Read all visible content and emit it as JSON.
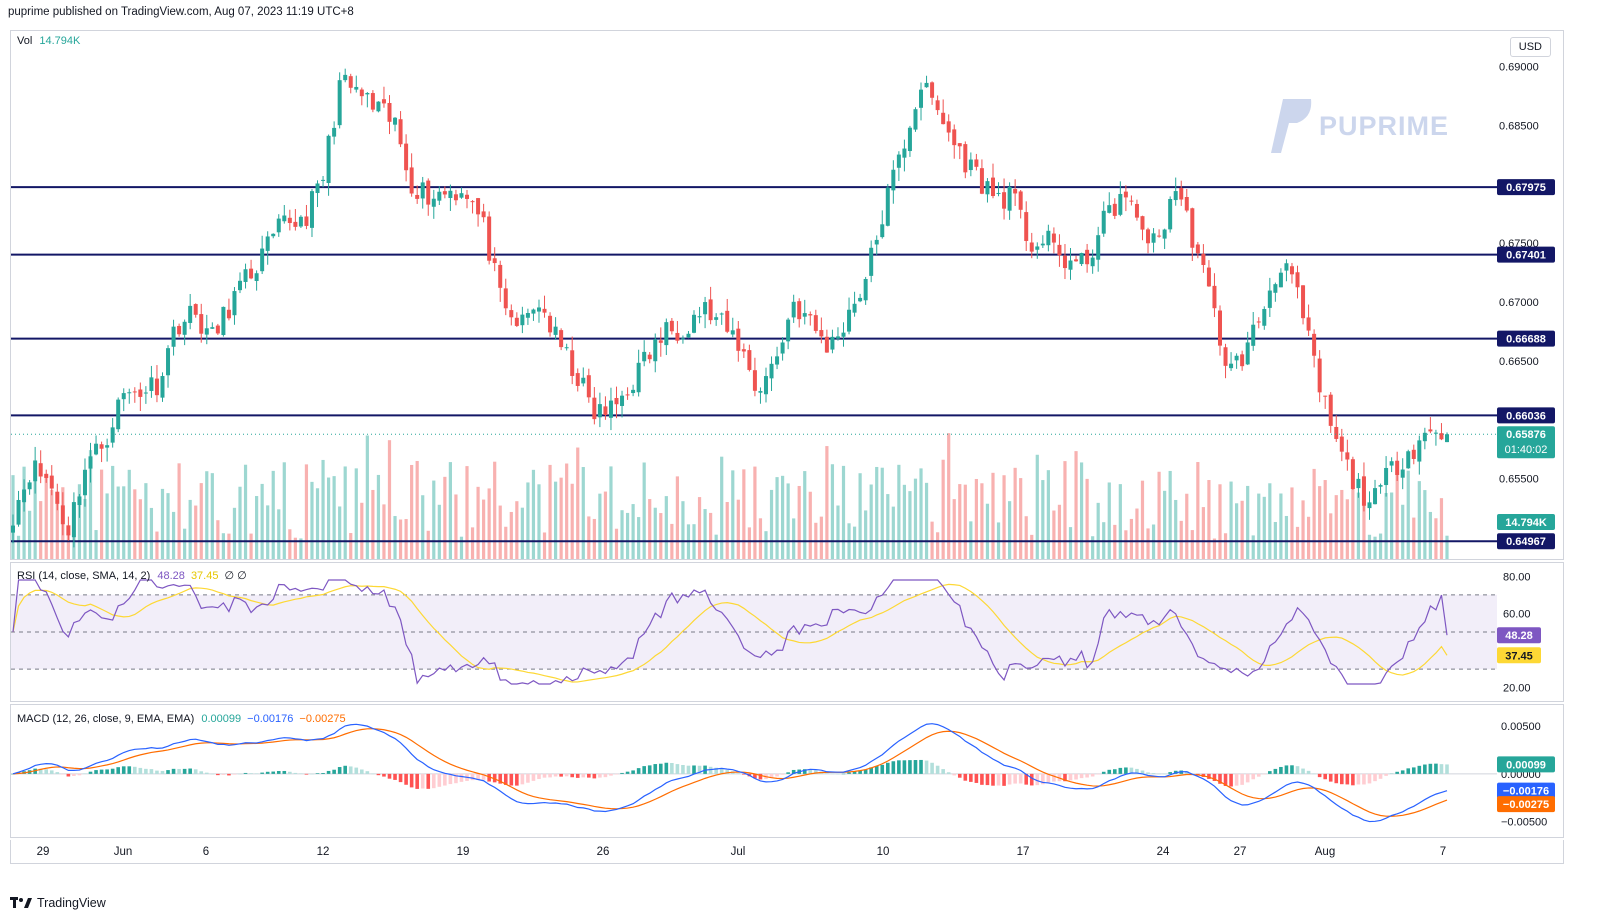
{
  "header": {
    "text": "puprime published on TradingView.com, Aug 07, 2023 11:19 UTC+8"
  },
  "main": {
    "volume_label": "Vol",
    "volume_value": "14.794K",
    "currency_button": "USD",
    "watermark": "PUPRIME",
    "price_ticks": [
      "0.69000",
      "0.68500",
      "0.67500",
      "0.67000",
      "0.66500",
      "0.65500"
    ],
    "level_lines": [
      "0.67975",
      "0.67401",
      "0.66688",
      "0.66036",
      "0.64967"
    ],
    "current_price": "0.65876",
    "countdown": "01:40:02",
    "volume_badge": "14.794K"
  },
  "rsi": {
    "label": "RSI (14, close, SMA, 14, 2)",
    "rsi_value": "48.28",
    "sma_value": "37.45",
    "extra": "∅  ∅",
    "ticks": [
      "80.00",
      "60.00",
      "20.00"
    ],
    "rsi_badge": "48.28",
    "sma_badge": "37.45"
  },
  "macd": {
    "label": "MACD (12, 26, close, 9, EMA, EMA)",
    "hist_value": "0.00099",
    "macd_value": "−0.00176",
    "signal_value": "−0.00275",
    "ticks": [
      "0.00500",
      "0.00000",
      "−0.00500"
    ],
    "hist_badge": "0.00099",
    "macd_badge": "−0.00176",
    "signal_badge": "−0.00275"
  },
  "x_axis": {
    "labels": [
      "29",
      "Jun",
      "6",
      "12",
      "19",
      "26",
      "Jul",
      "10",
      "17",
      "24",
      "27",
      "Aug",
      "7"
    ]
  },
  "footer": {
    "brand": "TradingView"
  },
  "colors": {
    "up": "#26a69a",
    "down": "#ef5350",
    "level": "#131766",
    "rsi": "#7e57c2",
    "rsi_sma": "#fdd835",
    "macd": "#2962ff",
    "signal": "#ff6d00"
  },
  "chart_data": {
    "type": "candlestick",
    "series": [
      {
        "name": "price_close_path",
        "values": [
          0.6521,
          0.656,
          0.6548,
          0.6505,
          0.6562,
          0.658,
          0.662,
          0.6625,
          0.6632,
          0.6682,
          0.669,
          0.6668,
          0.67,
          0.6722,
          0.6745,
          0.6768,
          0.677,
          0.68,
          0.6885,
          0.6878,
          0.6862,
          0.6852,
          0.68,
          0.679,
          0.6795,
          0.6795,
          0.676,
          0.669,
          0.668,
          0.67,
          0.6665,
          0.664,
          0.6605,
          0.6608,
          0.663,
          0.6655,
          0.6675,
          0.668,
          0.6695,
          0.668,
          0.6665,
          0.6625,
          0.665,
          0.67,
          0.668,
          0.666,
          0.669,
          0.672,
          0.678,
          0.683,
          0.6885,
          0.686,
          0.683,
          0.681,
          0.679,
          0.679,
          0.675,
          0.675,
          0.6735,
          0.673,
          0.6765,
          0.679,
          0.677,
          0.6745,
          0.68,
          0.6755,
          0.67,
          0.664,
          0.666,
          0.67,
          0.674,
          0.669,
          0.6625,
          0.6575,
          0.6543,
          0.653,
          0.656,
          0.6575,
          0.659,
          0.6588
        ]
      }
    ],
    "levels": [
      0.67975,
      0.67401,
      0.66688,
      0.66036,
      0.64967
    ],
    "ylim": [
      0.6485,
      0.6925
    ],
    "rsi": {
      "value": 48.28,
      "sma": 37.45,
      "ylim": [
        15,
        85
      ],
      "bands": [
        70,
        50,
        30
      ]
    },
    "macd": {
      "histogram": 0.00099,
      "macd": -0.00176,
      "signal": -0.00275,
      "ylim": [
        -0.0062,
        0.0068
      ]
    },
    "x_labels": [
      "29",
      "Jun",
      "6",
      "12",
      "19",
      "26",
      "Jul",
      "10",
      "17",
      "24",
      "27",
      "Aug",
      "7"
    ]
  }
}
